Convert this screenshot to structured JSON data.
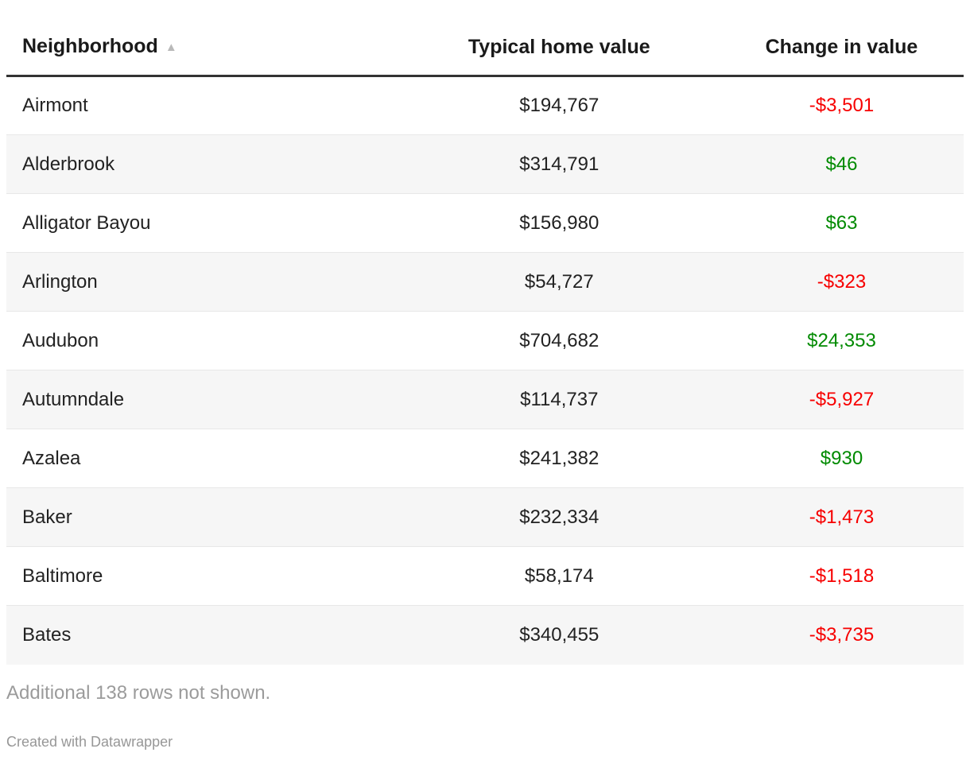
{
  "colors": {
    "negative": "#f70000",
    "positive": "#018a01",
    "header_rule": "#333333",
    "row_border": "#e8e8e8",
    "stripe": "#f6f6f6",
    "header_text": "#1a1a1a",
    "body_text": "#222222",
    "note_text": "#9b9b9b",
    "attribution_text": "#979797",
    "background": "#ffffff",
    "sort_icon": "#b9b9b9"
  },
  "ui": {
    "sort_ascending_icon": "▲"
  },
  "chart_data": {
    "type": "table",
    "columns": [
      {
        "label": "Neighborhood",
        "align": "left",
        "sorted": "ascending"
      },
      {
        "label": "Typical home value",
        "align": "center",
        "sorted": "none"
      },
      {
        "label": "Change in value",
        "align": "center",
        "sorted": "none"
      }
    ],
    "rows": [
      {
        "name": "Airmont",
        "value": "$194,767",
        "value_num": 194767,
        "change": "-$3,501",
        "change_num": -3501,
        "sign": "negative"
      },
      {
        "name": "Alderbrook",
        "value": "$314,791",
        "value_num": 314791,
        "change": "$46",
        "change_num": 46,
        "sign": "positive"
      },
      {
        "name": "Alligator Bayou",
        "value": "$156,980",
        "value_num": 156980,
        "change": "$63",
        "change_num": 63,
        "sign": "positive"
      },
      {
        "name": "Arlington",
        "value": "$54,727",
        "value_num": 54727,
        "change": "-$323",
        "change_num": -323,
        "sign": "negative"
      },
      {
        "name": "Audubon",
        "value": "$704,682",
        "value_num": 704682,
        "change": "$24,353",
        "change_num": 24353,
        "sign": "positive"
      },
      {
        "name": "Autumndale",
        "value": "$114,737",
        "value_num": 114737,
        "change": "-$5,927",
        "change_num": -5927,
        "sign": "negative"
      },
      {
        "name": "Azalea",
        "value": "$241,382",
        "value_num": 241382,
        "change": "$930",
        "change_num": 930,
        "sign": "positive"
      },
      {
        "name": "Baker",
        "value": "$232,334",
        "value_num": 232334,
        "change": "-$1,473",
        "change_num": -1473,
        "sign": "negative"
      },
      {
        "name": "Baltimore",
        "value": "$58,174",
        "value_num": 58174,
        "change": "-$1,518",
        "change_num": -1518,
        "sign": "negative"
      },
      {
        "name": "Bates",
        "value": "$340,455",
        "value_num": 340455,
        "change": "-$3,735",
        "change_num": -3735,
        "sign": "negative"
      }
    ]
  },
  "footer": {
    "note": "Additional 138 rows not shown.",
    "attribution": "Created with Datawrapper"
  }
}
